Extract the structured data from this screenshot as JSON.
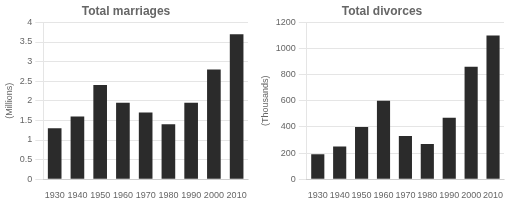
{
  "chart_data": [
    {
      "type": "bar",
      "title": "Total marriages",
      "y_label": "(Millions)",
      "categories": [
        "1930",
        "1940",
        "1950",
        "1960",
        "1970",
        "1980",
        "1990",
        "2000",
        "2010"
      ],
      "values": [
        1.3,
        1.6,
        2.4,
        1.95,
        1.7,
        1.4,
        1.95,
        2.8,
        3.7
      ],
      "color": "#2b2b2b",
      "ylim": [
        0,
        4
      ],
      "yticks": [
        0,
        0.5,
        1,
        1.5,
        2,
        2.5,
        3,
        3.5,
        4
      ],
      "grid": true
    },
    {
      "type": "bar",
      "title": "Total divorces",
      "y_label": "(Thousands)",
      "categories": [
        "1930",
        "1940",
        "1950",
        "1960",
        "1970",
        "1980",
        "1990",
        "2000",
        "2010"
      ],
      "values": [
        190,
        250,
        400,
        600,
        330,
        270,
        470,
        860,
        1100
      ],
      "color": "#2b2b2b",
      "ylim": [
        0,
        1200
      ],
      "yticks": [
        0,
        200,
        400,
        600,
        800,
        1000,
        1200
      ],
      "grid": true
    }
  ]
}
